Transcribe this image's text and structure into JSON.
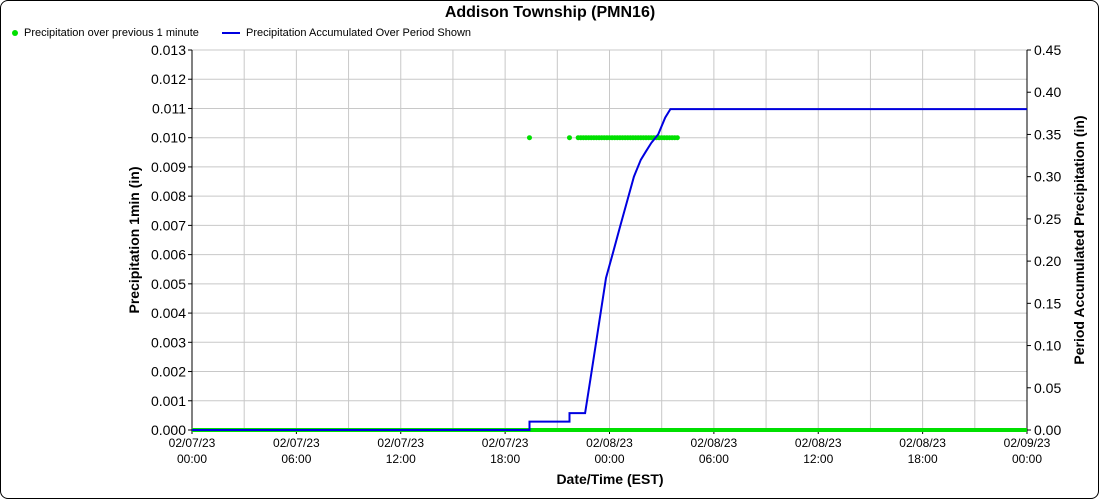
{
  "chart_data": {
    "type": "line",
    "title": "Addison Township (PMN16)",
    "xlabel": "Date/Time (EST)",
    "ylabel_left": "Precipitation 1min (in)",
    "ylabel_right": "Period Accumulated Precipitation (in)",
    "x_range_hours": [
      0,
      48
    ],
    "ylim_left": [
      0,
      0.013
    ],
    "ylim_right": [
      0,
      0.45
    ],
    "yticks_left": [
      "0.000",
      "0.001",
      "0.002",
      "0.003",
      "0.004",
      "0.005",
      "0.006",
      "0.007",
      "0.008",
      "0.009",
      "0.010",
      "0.011",
      "0.012",
      "0.013"
    ],
    "yticks_right": [
      "0.00",
      "0.05",
      "0.10",
      "0.15",
      "0.20",
      "0.25",
      "0.30",
      "0.35",
      "0.40",
      "0.45"
    ],
    "xticks": [
      {
        "date": "02/07/23",
        "time": "00:00"
      },
      {
        "date": "02/07/23",
        "time": "06:00"
      },
      {
        "date": "02/07/23",
        "time": "12:00"
      },
      {
        "date": "02/07/23",
        "time": "18:00"
      },
      {
        "date": "02/08/23",
        "time": "00:00"
      },
      {
        "date": "02/08/23",
        "time": "06:00"
      },
      {
        "date": "02/08/23",
        "time": "12:00"
      },
      {
        "date": "02/08/23",
        "time": "18:00"
      },
      {
        "date": "02/09/23",
        "time": "00:00"
      }
    ],
    "grid": true,
    "legend_position": "top-left",
    "series": [
      {
        "name": "Precipitation over previous 1 minute",
        "axis": "left",
        "style": "points",
        "color": "#00e000",
        "baseline_value": 0.0,
        "points_hours": [
          19.4,
          21.7,
          22.2,
          22.35,
          22.5,
          22.65,
          22.8,
          22.95,
          23.1,
          23.25,
          23.4,
          23.55,
          23.7,
          23.85,
          24.0,
          24.15,
          24.3,
          24.45,
          24.6,
          24.75,
          24.9,
          25.05,
          25.2,
          25.35,
          25.5,
          25.65,
          25.8,
          25.95,
          26.1,
          26.25,
          26.4,
          26.55,
          26.7,
          26.85,
          27.0,
          27.15,
          27.3,
          27.45,
          27.6,
          27.75,
          27.9
        ],
        "points_value": 0.01
      },
      {
        "name": "Precipitation Accumulated Over Period Shown",
        "axis": "right",
        "style": "step-line",
        "color": "#0000e0",
        "x_hours": [
          0,
          19.4,
          19.4,
          21.7,
          21.7,
          22.6,
          22.9,
          23.2,
          23.5,
          23.8,
          24.2,
          24.6,
          25.0,
          25.4,
          25.8,
          26.1,
          26.4,
          26.8,
          27.2,
          27.5,
          27.7,
          48
        ],
        "y": [
          0.0,
          0.0,
          0.01,
          0.01,
          0.02,
          0.02,
          0.06,
          0.1,
          0.14,
          0.18,
          0.21,
          0.24,
          0.27,
          0.3,
          0.32,
          0.33,
          0.34,
          0.35,
          0.37,
          0.38,
          0.38,
          0.38
        ]
      }
    ]
  }
}
